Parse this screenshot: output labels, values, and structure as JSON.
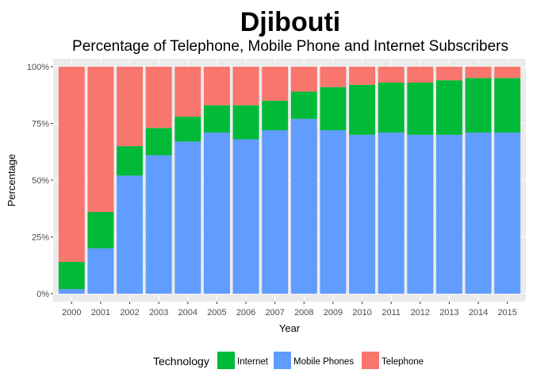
{
  "chart_data": {
    "type": "bar",
    "stacked": true,
    "title": "Djibouti",
    "subtitle": "Percentage of Telephone, Mobile Phone and Internet Subscribers",
    "xlabel": "Year",
    "ylabel": "Percentage",
    "ylim": [
      0,
      100
    ],
    "yticks": [
      "0%",
      "25%",
      "50%",
      "75%",
      "100%"
    ],
    "categories": [
      "2000",
      "2001",
      "2002",
      "2003",
      "2004",
      "2005",
      "2006",
      "2007",
      "2008",
      "2009",
      "2010",
      "2011",
      "2012",
      "2013",
      "2014",
      "2015"
    ],
    "series": [
      {
        "name": "Mobile Phones",
        "color": "#619CFF",
        "values": [
          2,
          20,
          52,
          61,
          67,
          71,
          68,
          72,
          77,
          72,
          70,
          71,
          70,
          70,
          71,
          71
        ]
      },
      {
        "name": "Internet",
        "color": "#00BA38",
        "values": [
          12,
          16,
          13,
          12,
          11,
          12,
          15,
          13,
          12,
          19,
          22,
          22,
          23,
          24,
          24,
          24
        ]
      },
      {
        "name": "Telephone",
        "color": "#F8766D",
        "values": [
          86,
          64,
          35,
          27,
          22,
          17,
          17,
          15,
          11,
          9,
          8,
          7,
          7,
          6,
          5,
          5
        ]
      }
    ],
    "legend": {
      "title": "Technology",
      "position": "bottom",
      "items": [
        {
          "label": "Internet",
          "color": "#00BA38"
        },
        {
          "label": "Mobile Phones",
          "color": "#619CFF"
        },
        {
          "label": "Telephone",
          "color": "#F8766D"
        }
      ]
    },
    "grid": true,
    "panel_background": "#EBEBEB"
  }
}
